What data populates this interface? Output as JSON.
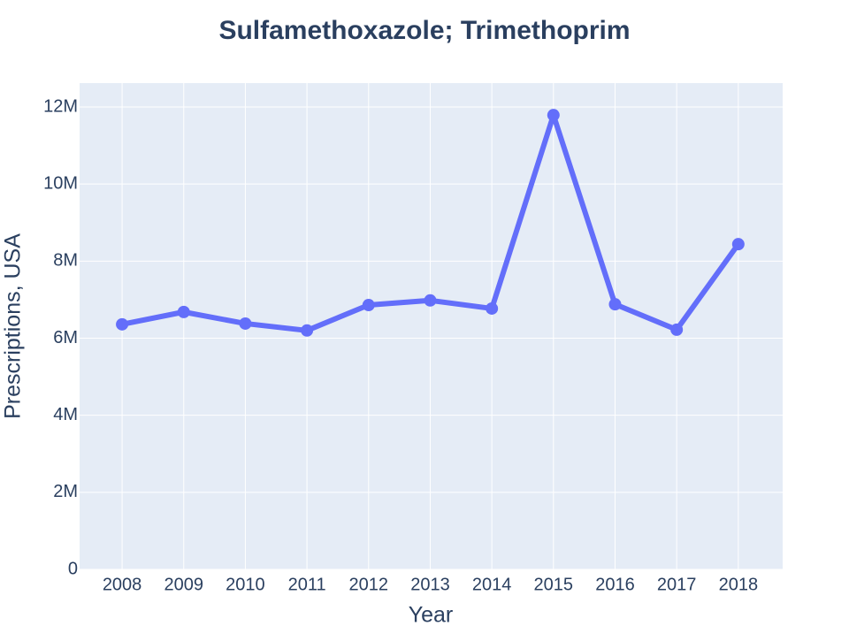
{
  "chart_data": {
    "type": "line",
    "title": "Sulfamethoxazole; Trimethoprim",
    "x_label": "Year",
    "y_label": "Prescriptions, USA",
    "x": [
      2008,
      2009,
      2010,
      2011,
      2012,
      2013,
      2014,
      2015,
      2016,
      2017,
      2018
    ],
    "series": [
      {
        "name": "Sulfamethoxazole; Trimethoprim",
        "color": "#636efa",
        "values": [
          6360000,
          6680000,
          6380000,
          6200000,
          6860000,
          6980000,
          6770000,
          11790000,
          6880000,
          6220000,
          8440000
        ]
      }
    ],
    "xlim": [
      2007.31,
      2018.72
    ],
    "xticks": [
      2008,
      2009,
      2010,
      2011,
      2012,
      2013,
      2014,
      2015,
      2016,
      2017,
      2018
    ],
    "ylim": [
      0,
      12620000
    ],
    "yticks": [
      0,
      {
        "value": 2000000,
        "label": "2M"
      },
      {
        "value": 4000000,
        "label": "4M"
      },
      {
        "value": 6000000,
        "label": "6M"
      },
      {
        "value": 8000000,
        "label": "8M"
      },
      {
        "value": 10000000,
        "label": "10M"
      },
      {
        "value": 12000000,
        "label": "12M"
      }
    ],
    "grid": true
  }
}
